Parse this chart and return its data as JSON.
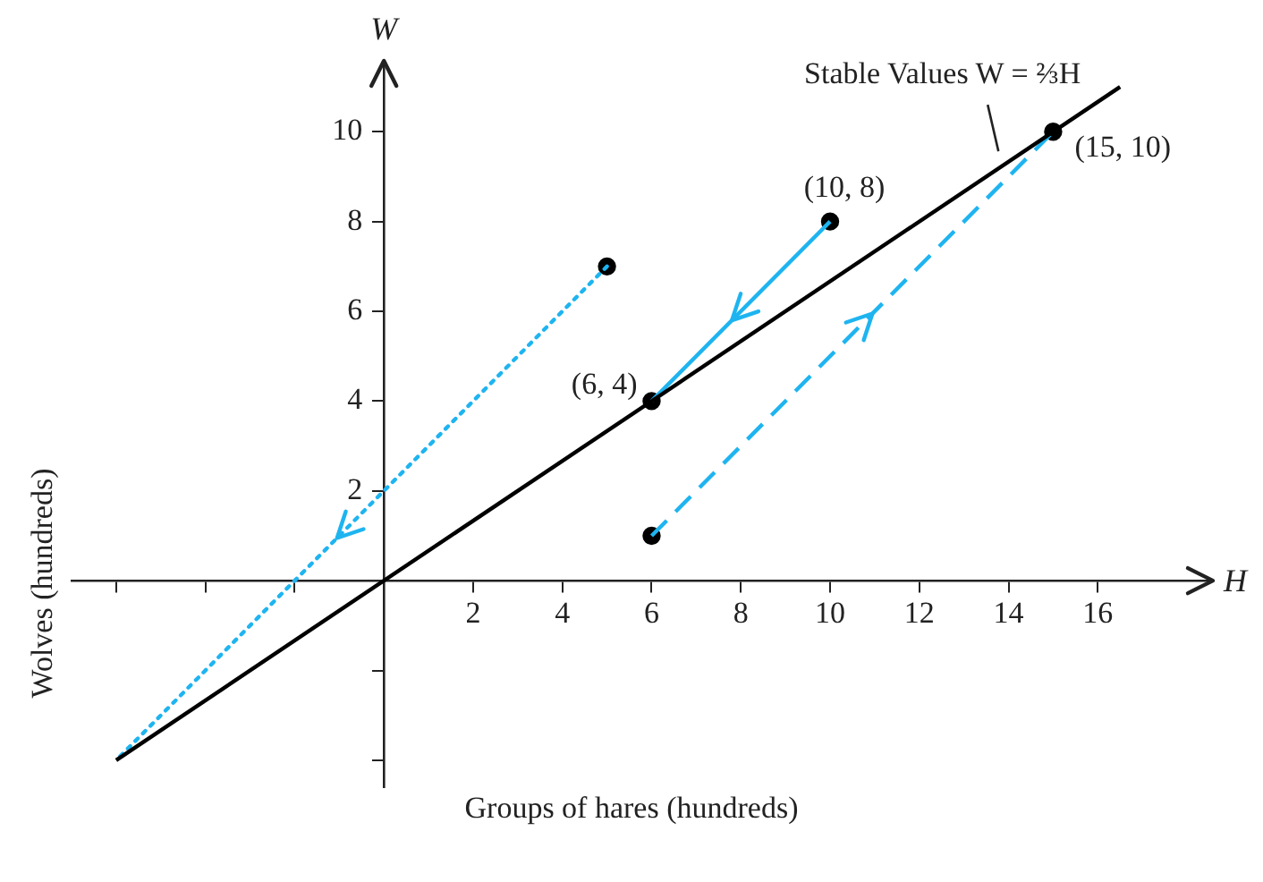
{
  "chart_data": {
    "type": "line",
    "xlabel": "Groups of hares (hundreds)",
    "ylabel": "Wolves (hundreds)",
    "annotations": [
      "W",
      "H"
    ],
    "xlim": [
      -7,
      18.5
    ],
    "ylim": [
      -4.6,
      11.5
    ],
    "xticks": [
      {
        "value": -6,
        "label": null
      },
      {
        "value": -4,
        "label": null
      },
      {
        "value": -2,
        "label": null
      },
      2,
      4,
      6,
      8,
      10,
      12,
      14,
      16
    ],
    "yticks": [
      {
        "value": -4,
        "label": null
      },
      {
        "value": -2,
        "label": null
      },
      2,
      4,
      6,
      8,
      10
    ],
    "grid": false,
    "legend": false,
    "marker": "none",
    "series": [
      {
        "name": "Stable Values W = ⅔H",
        "color": "#000000",
        "x": [
          -6,
          16.5
        ],
        "values": [
          -4,
          11
        ]
      },
      {
        "color": "#1eb4f0",
        "line_style": "dotted",
        "x": [
          5,
          -6
        ],
        "values": [
          7,
          -4
        ]
      },
      {
        "color": "#1eb4f0",
        "x": [
          10,
          6
        ],
        "values": [
          8,
          4
        ]
      },
      {
        "color": "#1eb4f0",
        "line_style": "dashed",
        "x": [
          6,
          15
        ],
        "values": [
          1,
          10
        ]
      },
      {
        "type": "scatter",
        "marker": "circle",
        "color": "#000000",
        "x": [
          5,
          10,
          6,
          15,
          6
        ],
        "values": [
          7,
          8,
          4,
          10,
          1
        ],
        "value_labels": [
          null,
          "(10, 8)",
          "(6, 4)",
          "(15, 10)",
          null
        ]
      }
    ]
  }
}
